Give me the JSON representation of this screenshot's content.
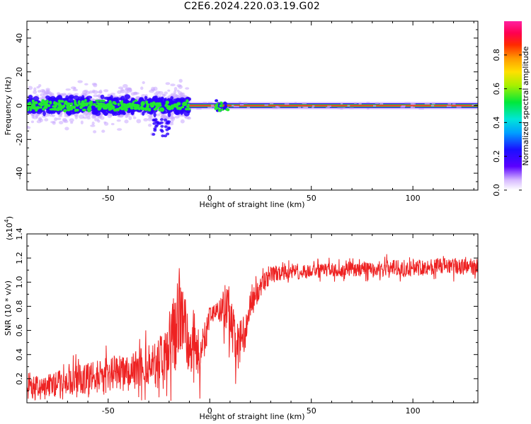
{
  "title": "C2E6.2024.220.03.19.G02",
  "colors": {
    "snr_line": "#ee2222",
    "spec_core": "#ff3030",
    "spec_mid": "#22e832",
    "spec_outer": "#2a00ff",
    "spec_halo": "#c9a8ff",
    "axis": "#000000"
  },
  "chart_data": [
    {
      "type": "heatmap",
      "name": "spectrogram",
      "title": "",
      "xlabel": "Height of straight line (km)",
      "ylabel": "Frequency (Hz)",
      "xlim": [
        -90,
        132
      ],
      "ylim": [
        -50,
        50
      ],
      "xticks": [
        -50,
        0,
        50,
        100
      ],
      "xtick_labels": [
        "-50",
        "0",
        "50",
        "100"
      ],
      "yticks": [
        -40,
        -20,
        0,
        20,
        40
      ],
      "ytick_labels": [
        "-40",
        "-20",
        "0",
        "20",
        "40"
      ],
      "bands": [
        {
          "x_start": -90,
          "x_end": -10,
          "level": 0.55,
          "half_width_hz": 4,
          "description": "scattered turbulent signal"
        },
        {
          "x_start": -10,
          "x_end": 132,
          "level": 0.95,
          "half_width_hz": 1,
          "description": "steady carrier line"
        }
      ],
      "colorbar": {
        "label": "Normalized spectral amplitude",
        "ticks": [
          0.0,
          0.2,
          0.4,
          0.6,
          0.8
        ],
        "tick_labels": [
          "0.0",
          "0.2",
          "0.4",
          "0.6",
          "0.8"
        ],
        "range": [
          0,
          1
        ]
      }
    },
    {
      "type": "line",
      "name": "snr",
      "xlabel": "Height of straight line (km)",
      "ylabel": "SNR (10 * v/v)",
      "yscale_label": "(x10",
      "yscale_exp": "4",
      "yscale_close": ")",
      "xlim": [
        -90,
        132
      ],
      "ylim": [
        0,
        1.4
      ],
      "xticks": [
        -50,
        0,
        50,
        100
      ],
      "xtick_labels": [
        "-50",
        "0",
        "50",
        "100"
      ],
      "yticks": [
        0.2,
        0.4,
        0.6,
        0.8,
        1.0,
        1.2,
        1.4
      ],
      "ytick_labels": [
        "0.2",
        "0.4",
        "0.6",
        "0.8",
        "1.0",
        "1.2",
        "1.4"
      ],
      "series": [
        {
          "name": "SNR",
          "x": [
            -90,
            -80,
            -70,
            -60,
            -50,
            -40,
            -30,
            -25,
            -20,
            -17,
            -15,
            -13,
            -10,
            -8,
            -5,
            -3,
            0,
            2,
            5,
            8,
            10,
            13,
            15,
            18,
            20,
            25,
            30,
            40,
            50,
            60,
            70,
            80,
            90,
            100,
            110,
            120,
            132
          ],
          "values": [
            0.12,
            0.14,
            0.18,
            0.2,
            0.24,
            0.27,
            0.32,
            0.36,
            0.42,
            0.6,
            0.82,
            0.65,
            0.45,
            0.55,
            0.35,
            0.5,
            0.72,
            0.74,
            0.76,
            0.8,
            0.7,
            0.45,
            0.5,
            0.62,
            0.8,
            0.96,
            1.06,
            1.08,
            1.09,
            1.1,
            1.1,
            1.11,
            1.12,
            1.12,
            1.13,
            1.13,
            1.13
          ],
          "spread": [
            0.09,
            0.1,
            0.12,
            0.13,
            0.14,
            0.15,
            0.17,
            0.2,
            0.25,
            0.35,
            0.38,
            0.3,
            0.25,
            0.25,
            0.2,
            0.2,
            0.08,
            0.06,
            0.1,
            0.22,
            0.22,
            0.22,
            0.18,
            0.14,
            0.12,
            0.08,
            0.07,
            0.06,
            0.06,
            0.06,
            0.06,
            0.06,
            0.07,
            0.07,
            0.07,
            0.07,
            0.07
          ]
        }
      ]
    }
  ]
}
